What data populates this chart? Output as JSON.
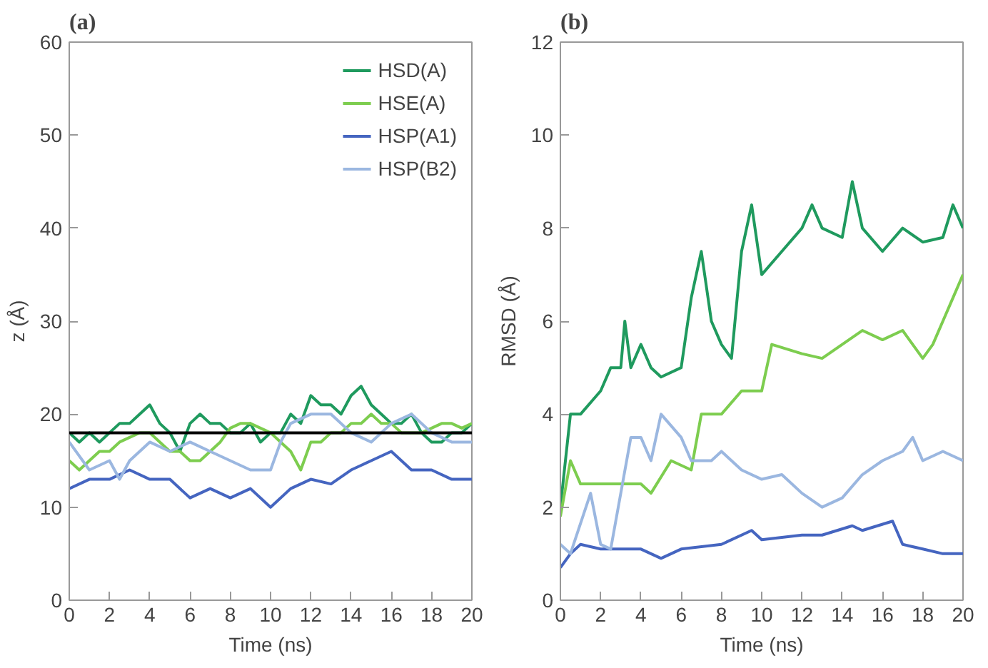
{
  "chart_data": [
    {
      "type": "line",
      "title": "(a)",
      "xlabel": "Time (ns)",
      "ylabel": "z (Å)",
      "xlim": [
        0,
        20
      ],
      "ylim": [
        0,
        60
      ],
      "xticks": [
        0,
        2,
        4,
        6,
        8,
        10,
        12,
        14,
        16,
        18,
        20
      ],
      "yticks": [
        0,
        10,
        20,
        30,
        40,
        50,
        60
      ],
      "grid": false,
      "legend": "top right",
      "ref_lines": [
        {
          "axis": "y",
          "value": 18,
          "color": "#000000"
        }
      ],
      "series": [
        {
          "name": "HSD(A)",
          "color": "#1f9a5e",
          "x": [
            0,
            0.5,
            1,
            1.5,
            2,
            2.5,
            3,
            3.5,
            4,
            4.5,
            5,
            5.5,
            6,
            6.5,
            7,
            7.5,
            8,
            8.5,
            9,
            9.5,
            10,
            10.5,
            11,
            11.5,
            12,
            12.5,
            13,
            13.5,
            14,
            14.5,
            15,
            15.5,
            16,
            16.5,
            17,
            17.5,
            18,
            18.5,
            19,
            19.5,
            20
          ],
          "values": [
            18,
            17,
            18,
            17,
            18,
            19,
            19,
            20,
            21,
            19,
            18,
            16,
            19,
            20,
            19,
            19,
            18,
            18,
            19,
            17,
            18,
            18,
            20,
            19,
            22,
            21,
            21,
            20,
            22,
            23,
            21,
            20,
            19,
            19,
            20,
            18,
            17,
            17,
            18,
            18,
            19
          ]
        },
        {
          "name": "HSE(A)",
          "color": "#7dcd4f",
          "x": [
            0,
            0.5,
            1,
            1.5,
            2,
            2.5,
            3,
            3.5,
            4,
            4.5,
            5,
            5.5,
            6,
            6.5,
            7,
            7.5,
            8,
            8.5,
            9,
            9.5,
            10,
            10.5,
            11,
            11.5,
            12,
            12.5,
            13,
            13.5,
            14,
            14.5,
            15,
            15.5,
            16,
            16.5,
            17,
            17.5,
            18,
            18.5,
            19,
            19.5,
            20
          ],
          "values": [
            15,
            14,
            15,
            16,
            16,
            17,
            17.5,
            18,
            18,
            17,
            16,
            16,
            15,
            15,
            16,
            17,
            18.5,
            19,
            19,
            18.5,
            18,
            17,
            16,
            14,
            17,
            17,
            18,
            18,
            19,
            19,
            20,
            19,
            19,
            18,
            18,
            18,
            18.5,
            19,
            19,
            18.5,
            19
          ]
        },
        {
          "name": "HSP(A1)",
          "color": "#4565c0",
          "x": [
            0,
            1,
            2,
            3,
            4,
            5,
            6,
            7,
            8,
            9,
            10,
            11,
            12,
            13,
            14,
            15,
            16,
            17,
            18,
            19,
            20
          ],
          "values": [
            12,
            13,
            13,
            14,
            13,
            13,
            11,
            12,
            11,
            12,
            10,
            12,
            13,
            12.5,
            14,
            15,
            16,
            14,
            14,
            13,
            13
          ]
        },
        {
          "name": "HSP(B2)",
          "color": "#9bb7e0",
          "x": [
            0,
            1,
            2,
            2.5,
            3,
            4,
            5,
            6,
            7,
            8,
            9,
            10,
            10.5,
            11,
            12,
            13,
            14,
            15,
            16,
            17,
            18,
            19,
            20
          ],
          "values": [
            17,
            14,
            15,
            13,
            15,
            17,
            16,
            17,
            16,
            15,
            14,
            14,
            17,
            19,
            20,
            20,
            18,
            17,
            19,
            20,
            18,
            17,
            17
          ]
        }
      ]
    },
    {
      "type": "line",
      "title": "(b)",
      "xlabel": "Time (ns)",
      "ylabel": "RMSD (Å)",
      "xlim": [
        0,
        20
      ],
      "ylim": [
        0,
        12
      ],
      "xticks": [
        0,
        2,
        4,
        6,
        8,
        10,
        12,
        14,
        16,
        18,
        20
      ],
      "yticks": [
        0,
        2,
        4,
        6,
        8,
        10,
        12
      ],
      "grid": false,
      "series": [
        {
          "color": "#1f9a5e",
          "x": [
            0,
            0.5,
            1,
            2,
            2.5,
            3,
            3.2,
            3.5,
            4,
            4.5,
            5,
            6,
            6.5,
            7,
            7.5,
            8,
            8.5,
            9,
            9.5,
            10,
            11,
            12,
            12.5,
            13,
            14,
            14.5,
            15,
            16,
            17,
            18,
            19,
            19.5,
            20
          ],
          "values": [
            2,
            4,
            4,
            4.5,
            5,
            5,
            6,
            5,
            5.5,
            5,
            4.8,
            5,
            6.5,
            7.5,
            6,
            5.5,
            5.2,
            7.5,
            8.5,
            7,
            7.5,
            8,
            8.5,
            8,
            7.8,
            9,
            8,
            7.5,
            8,
            7.7,
            7.8,
            8.5,
            8
          ]
        },
        {
          "color": "#7dcd4f",
          "x": [
            0,
            0.5,
            1,
            2,
            3,
            4,
            4.5,
            5.5,
            6.5,
            7,
            8,
            9,
            10,
            10.5,
            12,
            13,
            14,
            15,
            16,
            17,
            18,
            18.5,
            19,
            19.5,
            20
          ],
          "values": [
            1.8,
            3,
            2.5,
            2.5,
            2.5,
            2.5,
            2.3,
            3,
            2.8,
            4,
            4,
            4.5,
            4.5,
            5.5,
            5.3,
            5.2,
            5.5,
            5.8,
            5.6,
            5.8,
            5.2,
            5.5,
            6,
            6.5,
            7
          ]
        },
        {
          "color": "#4565c0",
          "x": [
            0,
            0.5,
            1,
            2,
            3,
            4,
            5,
            6,
            8,
            9.5,
            10,
            12,
            13,
            14.5,
            15,
            16.5,
            17,
            18,
            19,
            20
          ],
          "values": [
            0.7,
            1,
            1.2,
            1.1,
            1.1,
            1.1,
            0.9,
            1.1,
            1.2,
            1.5,
            1.3,
            1.4,
            1.4,
            1.6,
            1.5,
            1.7,
            1.2,
            1.1,
            1,
            1
          ]
        },
        {
          "color": "#9bb7e0",
          "x": [
            0,
            0.5,
            1.5,
            2,
            2.5,
            3.5,
            4,
            4.5,
            5,
            6,
            6.5,
            7.5,
            8,
            9,
            10,
            11,
            12,
            13,
            14,
            15,
            16,
            17,
            17.5,
            18,
            19,
            20
          ],
          "values": [
            1.2,
            1,
            2.3,
            1.2,
            1.1,
            3.5,
            3.5,
            3,
            4,
            3.5,
            3,
            3,
            3.2,
            2.8,
            2.6,
            2.7,
            2.3,
            2,
            2.2,
            2.7,
            3,
            3.2,
            3.5,
            3,
            3.2,
            3
          ]
        }
      ]
    }
  ]
}
